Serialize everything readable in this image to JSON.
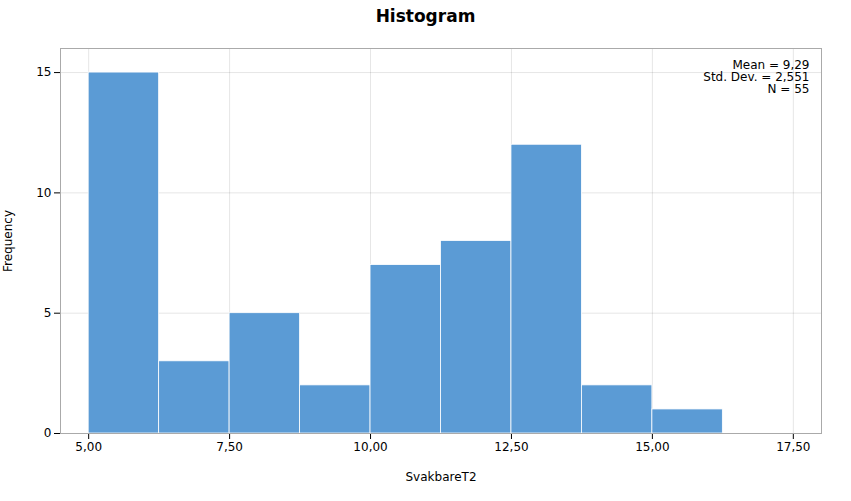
{
  "chart_data": {
    "type": "histogram",
    "title": "Histogram",
    "x_label": "SvakbareT2",
    "y_label": "Frequency",
    "bins": [
      5.0,
      6.25,
      7.5,
      8.75,
      10.0,
      11.25,
      12.5,
      13.75,
      15.0,
      16.25
    ],
    "values": [
      15,
      3,
      5,
      2,
      7,
      8,
      12,
      2,
      1
    ],
    "color": "#5B9BD5",
    "xlim": [
      4.5,
      18.0
    ],
    "xticks": [
      {
        "value": 5.0,
        "label": "5,00"
      },
      {
        "value": 7.5,
        "label": "7,50"
      },
      {
        "value": 10.0,
        "label": "10,00"
      },
      {
        "value": 12.5,
        "label": "12,50"
      },
      {
        "value": 15.0,
        "label": "15,00"
      },
      {
        "value": 17.5,
        "label": "17,50"
      }
    ],
    "ylim": [
      0,
      16
    ],
    "yticks": [
      0,
      5,
      10,
      15
    ],
    "grid": true,
    "annotations": [
      "Mean = 9,29",
      "Std. Dev. = 2,551",
      "N = 55"
    ]
  }
}
